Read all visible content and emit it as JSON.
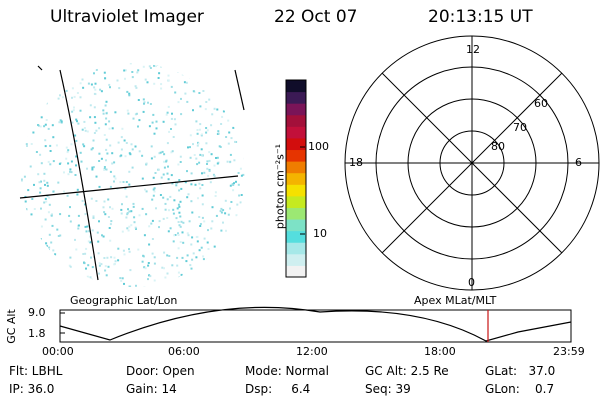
{
  "header": {
    "title": "Ultraviolet Imager",
    "date": "22 Oct 07",
    "time": "20:13:15 UT"
  },
  "colorbar": {
    "unit_label": "photon cm⁻²s⁻¹",
    "ticks": [
      "100",
      "10"
    ],
    "colors": [
      "#f2f2f2",
      "#cfeff0",
      "#a6e8e8",
      "#55dede",
      "#7de2c6",
      "#9ce873",
      "#c5ea20",
      "#f5e100",
      "#f4b400",
      "#ef7d00",
      "#e63400",
      "#d20d0d",
      "#c2103a",
      "#a3103a",
      "#7a1458",
      "#3b1a55",
      "#100d2a"
    ]
  },
  "polar_plot": {
    "lat_labels": [
      "60",
      "70",
      "80"
    ],
    "mlt_labels": [
      "12",
      "18",
      "6",
      "0"
    ]
  },
  "altitude_panel": {
    "left_label": "Geographic Lat/Lon",
    "right_label": "Apex MLat/MLT",
    "ylabel": "GC Alt",
    "y_ticks": [
      "9.0",
      "1.8"
    ],
    "x_ticks": [
      "00:00",
      "06:00",
      "12:00",
      "18:00",
      "23:59"
    ]
  },
  "status": {
    "filter": "Flt: LBHL",
    "ip": "IP: 36.0",
    "door": "Door: Open",
    "gain": "Gain: 14",
    "mode": "Mode: Normal",
    "dsp": "Dsp:     6.4",
    "gc_alt": "GC Alt: 2.5 Re",
    "seq": "Seq: 39",
    "glat": "GLat:   37.0",
    "glon": "GLon:    0.7"
  },
  "colors": {
    "accent_marker": "#c81414",
    "speckle": "#7fd6de"
  }
}
